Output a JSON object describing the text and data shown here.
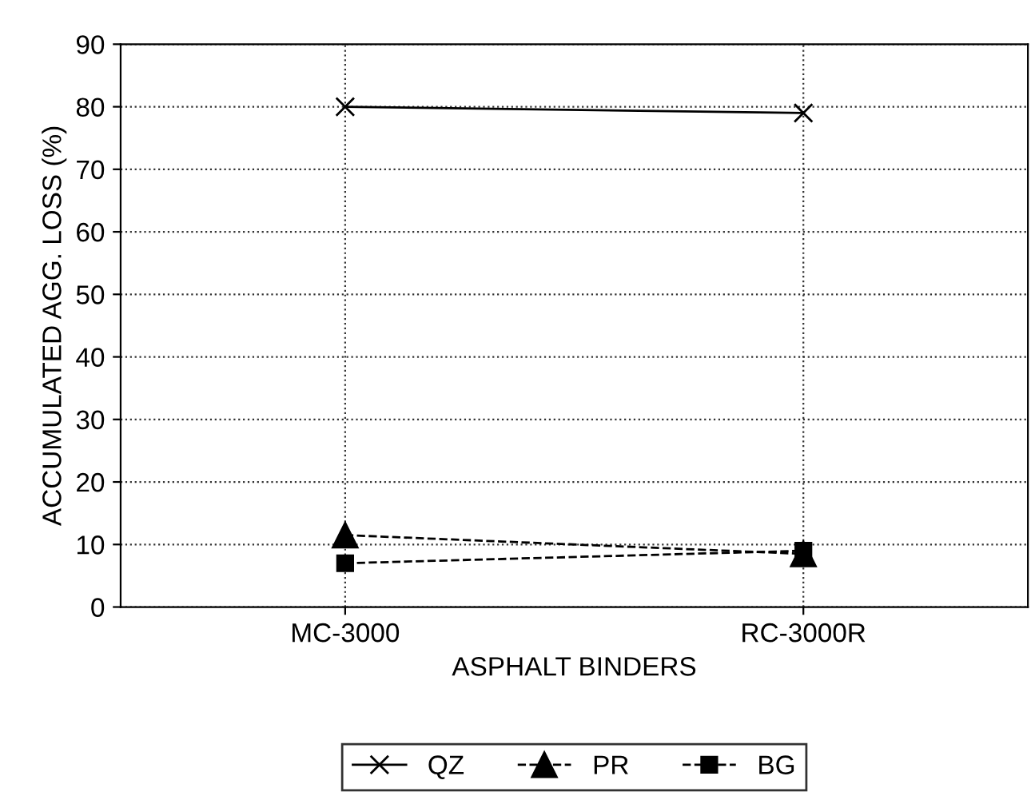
{
  "chart_data": {
    "type": "line",
    "xlabel": "ASPHALT BINDERS",
    "ylabel": "ACCUMULATED AGG. LOSS (%)",
    "categories": [
      "MC-3000",
      "RC-3000R"
    ],
    "series": [
      {
        "name": "QZ",
        "color": "#000000",
        "values": [
          80,
          79
        ],
        "marker": "cross",
        "line_style": "solid"
      },
      {
        "name": "PR",
        "color": "#000000",
        "values": [
          11.5,
          8.5
        ],
        "marker": "triangle",
        "line_style": "dashed"
      },
      {
        "name": "BG",
        "color": "#000000",
        "values": [
          7,
          9
        ],
        "marker": "square",
        "line_style": "dashed"
      }
    ],
    "ylim": [
      0,
      90
    ],
    "yticks": [
      0,
      10,
      20,
      30,
      40,
      50,
      60,
      70,
      80,
      90
    ],
    "grid": true,
    "legend": "bottom"
  }
}
